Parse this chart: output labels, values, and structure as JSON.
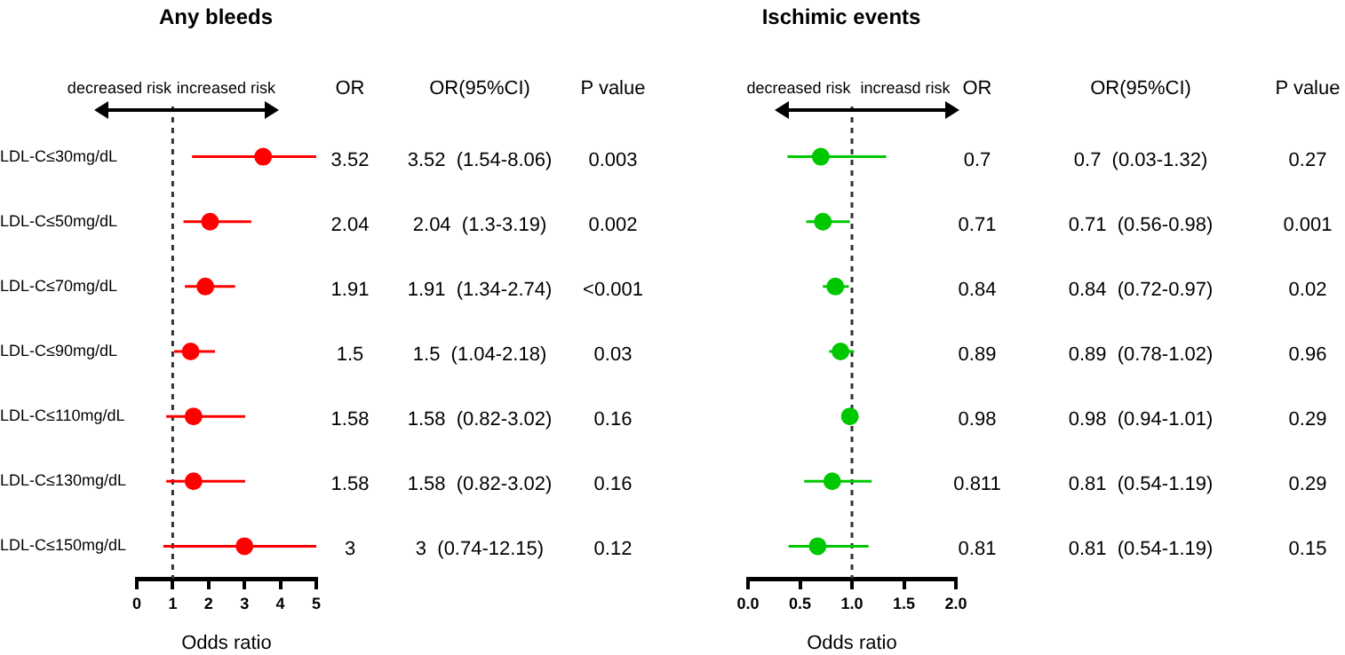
{
  "chart_data": [
    {
      "type": "scatter",
      "orientation": "horizontal",
      "title": "Any bleeds",
      "xlabel": "Odds ratio",
      "categories": [
        "LDL-C≤30mg/dL",
        "LDL-C≤50mg/dL",
        "LDL-C≤70mg/dL",
        "LDL-C≤90mg/dL",
        "LDL-C≤110mg/dL",
        "LDL-C≤130mg/dL",
        "LDL-C≤150mg/dL"
      ],
      "values": [
        3.52,
        2.04,
        1.91,
        1.5,
        1.58,
        1.58,
        3
      ],
      "errors": [
        [
          1.54,
          5
        ],
        [
          1.3,
          3.19
        ],
        [
          1.34,
          2.74
        ],
        [
          1.04,
          2.18
        ],
        [
          0.82,
          3.02
        ],
        [
          0.82,
          3.02
        ],
        [
          0.74,
          5
        ]
      ],
      "color": "#ff0000",
      "marker": "circle",
      "grid": false,
      "legend": false,
      "xlim": [
        0,
        5
      ],
      "xticks": [
        0,
        1,
        2,
        3,
        4,
        5
      ],
      "ref_lines": [
        {
          "axis": "x",
          "value": 1,
          "line_style": "dashed",
          "color": "#333333"
        }
      ],
      "annotations": [
        "decreased risk",
        "increased risk",
        "OR",
        "OR(95%CI)",
        "P value",
        "3.52",
        "3.52  (1.54-8.06)",
        "0.003",
        "2.04",
        "2.04  (1.3-3.19)",
        "0.002",
        "1.91",
        "1.91  (1.34-2.74)",
        "<0.001",
        "1.5",
        "1.5  (1.04-2.18)",
        "0.03",
        "1.58",
        "1.58  (0.82-3.02)",
        "0.16",
        "1.58",
        "1.58  (0.82-3.02)",
        "0.16",
        "3",
        "3  (0.74-12.15)",
        "0.12"
      ]
    },
    {
      "type": "scatter",
      "orientation": "horizontal",
      "title": "Ischimic events",
      "xlabel": "Odds ratio",
      "categories": [
        null,
        null,
        null,
        null,
        null,
        null,
        null
      ],
      "values": [
        0.7,
        0.72,
        0.84,
        0.89,
        0.98,
        0.81,
        0.67
      ],
      "errors": [
        [
          0.38,
          1.33
        ],
        [
          0.56,
          0.98
        ],
        [
          0.72,
          0.97
        ],
        [
          0.78,
          1.02
        ],
        [
          0.94,
          1.01
        ],
        [
          0.54,
          1.19
        ],
        [
          0.39,
          1.16
        ]
      ],
      "color": "#00c800",
      "marker": "circle",
      "grid": false,
      "legend": false,
      "xlim": [
        0,
        2
      ],
      "xticks": [
        {
          "value": 0,
          "label": "0.0"
        },
        {
          "value": 0.5,
          "label": "0.5"
        },
        {
          "value": 1,
          "label": "1.0"
        },
        {
          "value": 1.5,
          "label": "1.5"
        },
        {
          "value": 2,
          "label": "2.0"
        }
      ],
      "ref_lines": [
        {
          "axis": "x",
          "value": 1,
          "line_style": "dashed",
          "color": "#333333"
        }
      ],
      "annotations": [
        "decreased risk",
        "increasd risk",
        "OR",
        "OR(95%CI)",
        "P value",
        "0.7",
        "0.7  (0.03-1.32)",
        "0.27",
        "0.71",
        "0.71  (0.56-0.98)",
        "0.001",
        "0.84",
        "0.84  (0.72-0.97)",
        "0.02",
        "0.89",
        "0.89  (0.78-1.02)",
        "0.96",
        "0.98",
        "0.98  (0.94-1.01)",
        "0.29",
        "0.811",
        "0.81  (0.54-1.19)",
        "0.29",
        "0.81",
        "0.81  (0.54-1.19)",
        "0.15"
      ]
    }
  ]
}
